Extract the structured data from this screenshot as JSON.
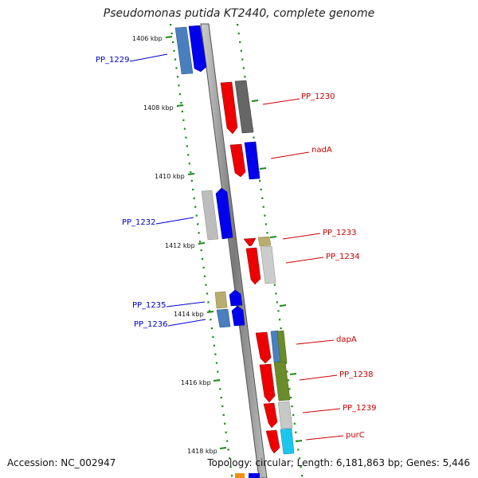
{
  "title": "Pseudomonas putida KT2440, complete genome",
  "footer": {
    "accession": "Accession: NC_002947",
    "summary": "Topology: circular; Length: 6,181,863 bp; Genes: 5,446"
  },
  "ticks": [
    "1406 kbp",
    "1408 kbp",
    "1410 kbp",
    "1412 kbp",
    "1414 kbp",
    "1416 kbp",
    "1418 kbp"
  ],
  "gene_labels": [
    {
      "text": "PP_1229",
      "color": "#0000cc"
    },
    {
      "text": "PP_1230",
      "color": "#cc0000"
    },
    {
      "text": "nadA",
      "color": "#cc0000"
    },
    {
      "text": "PP_1232",
      "color": "#0000cc"
    },
    {
      "text": "PP_1233",
      "color": "#cc0000"
    },
    {
      "text": "PP_1234",
      "color": "#cc0000"
    },
    {
      "text": "PP_1235",
      "color": "#0000cc"
    },
    {
      "text": "PP_1236",
      "color": "#0000cc"
    },
    {
      "text": "dapA",
      "color": "#cc0000"
    },
    {
      "text": "PP_1238",
      "color": "#cc0000"
    },
    {
      "text": "PP_1239",
      "color": "#cc0000"
    },
    {
      "text": "purC",
      "color": "#cc0000"
    }
  ],
  "colors": {
    "forward_strand": "#0000ee",
    "reverse_strand": "#ee0000",
    "backbone": "#888888",
    "gc_dots": "#1a8a1a"
  }
}
